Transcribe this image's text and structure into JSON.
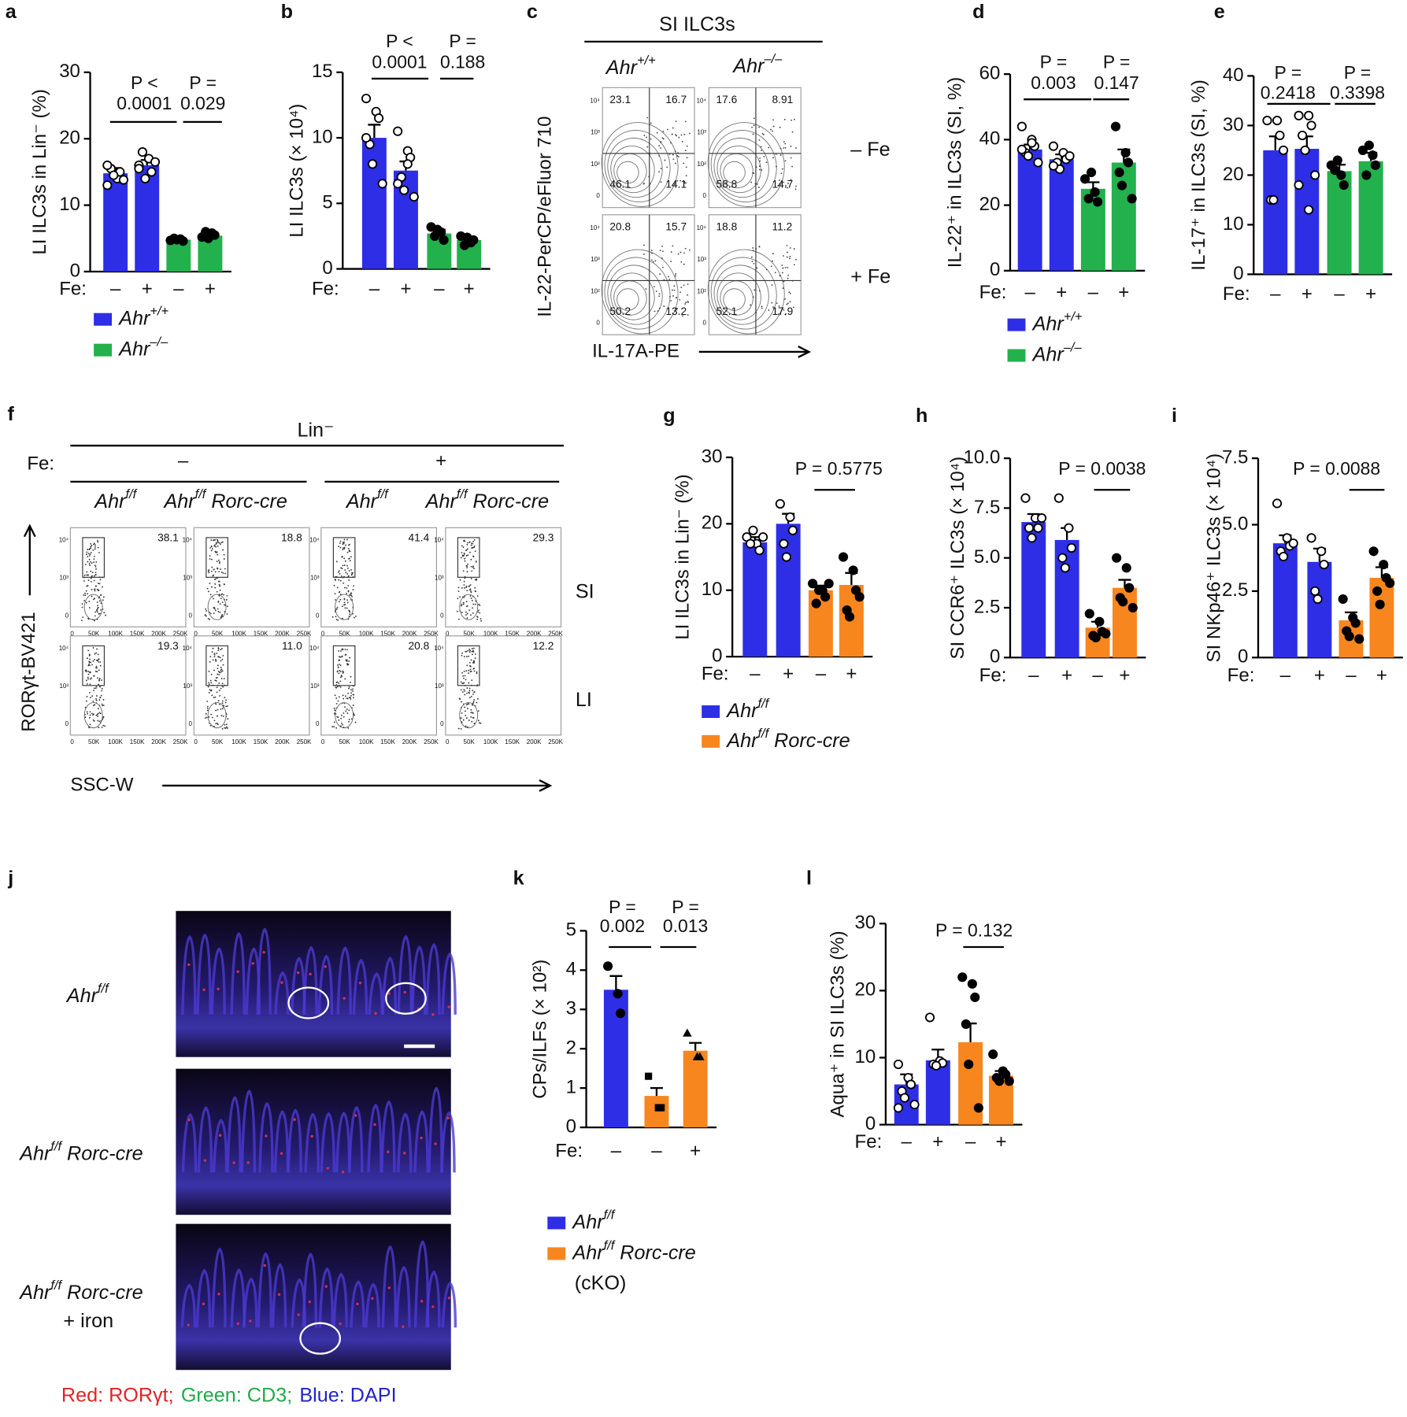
{
  "chart_data": [
    {
      "panel": "a",
      "type": "bar",
      "ylabel": "LI ILC3s in Lin⁻ (%)",
      "xlabel": "Fe:",
      "categories": [
        "–",
        "+",
        "–",
        "+"
      ],
      "values": [
        14.8,
        16.0,
        4.8,
        5.4
      ],
      "errors": [
        0.8,
        0.8,
        0.2,
        0.3
      ],
      "colors": [
        "#2e2ee6",
        "#2e2ee6",
        "#22b14c",
        "#22b14c"
      ],
      "points": [
        [
          13,
          14,
          15,
          15.5,
          14.5,
          13.8,
          16
        ],
        [
          16,
          17,
          15,
          18,
          14,
          16.5,
          15.5
        ],
        [
          4.7,
          4.9,
          4.6,
          5,
          4.8
        ],
        [
          5.2,
          5.8,
          5.5,
          6,
          5
        ]
      ],
      "point_style": [
        "open",
        "open",
        "filled",
        "filled"
      ],
      "ylim": [
        0,
        30
      ],
      "yticks": [
        0,
        10,
        20,
        30
      ],
      "annotations": [
        {
          "lines": [
            "P <",
            "0.0001"
          ]
        },
        {
          "lines": [
            "P =",
            "0.029"
          ]
        }
      ]
    },
    {
      "panel": "b",
      "type": "bar",
      "ylabel": "LI ILC3s (× 10⁴)",
      "xlabel": "Fe:",
      "categories": [
        "–",
        "+",
        "–",
        "+"
      ],
      "values": [
        10,
        7.5,
        2.7,
        2.2
      ],
      "errors": [
        1,
        0.7,
        0.3,
        0.2
      ],
      "colors": [
        "#2e2ee6",
        "#2e2ee6",
        "#22b14c",
        "#22b14c"
      ],
      "points": [
        [
          13,
          12,
          11.5,
          9.5,
          8,
          6.5,
          10
        ],
        [
          10.5,
          9,
          8.5,
          7,
          6,
          5.5,
          6.5,
          8
        ],
        [
          3.2,
          2.8,
          2.2,
          2.5,
          3
        ],
        [
          2.5,
          2,
          2.2,
          1.8,
          2.4
        ]
      ],
      "point_style": [
        "open",
        "open",
        "filled",
        "filled"
      ],
      "ylim": [
        0,
        15
      ],
      "yticks": [
        0,
        5,
        10,
        15
      ],
      "annotations": [
        {
          "lines": [
            "P <",
            "0.0001"
          ]
        },
        {
          "lines": [
            "P =",
            "0.188"
          ]
        }
      ]
    },
    {
      "panel": "d",
      "type": "bar",
      "ylabel": "IL-22⁺ in ILC3s (SI, %)",
      "xlabel": "Fe:",
      "categories": [
        "–",
        "+",
        "–",
        "+"
      ],
      "values": [
        37,
        34,
        25,
        33
      ],
      "errors": [
        1.5,
        1.5,
        2,
        4
      ],
      "colors": [
        "#2e2ee6",
        "#2e2ee6",
        "#22b14c",
        "#22b14c"
      ],
      "points": [
        [
          44,
          40,
          38,
          36,
          35,
          33,
          37,
          39
        ],
        [
          38,
          36,
          34,
          33,
          31,
          35,
          32
        ],
        [
          28,
          24,
          21,
          22,
          30
        ],
        [
          44,
          36,
          33,
          30,
          26,
          22
        ]
      ],
      "point_style": [
        "open",
        "open",
        "filled",
        "filled"
      ],
      "ylim": [
        0,
        60
      ],
      "yticks": [
        0,
        20,
        40,
        60
      ],
      "annotations": [
        {
          "lines": [
            "P =",
            "0.003"
          ]
        },
        {
          "lines": [
            "P =",
            "0.147"
          ]
        }
      ]
    },
    {
      "panel": "e",
      "type": "bar",
      "ylabel": "IL-17⁺ in ILC3s (SI, %)",
      "xlabel": "Fe:",
      "categories": [
        "–",
        "+",
        "–",
        "+"
      ],
      "values": [
        25,
        25.3,
        20.8,
        22.8
      ],
      "errors": [
        2.8,
        2.5,
        1.3,
        1.7
      ],
      "colors": [
        "#2e2ee6",
        "#2e2ee6",
        "#22b14c",
        "#22b14c"
      ],
      "points": [
        [
          31,
          31,
          28,
          15,
          15,
          25
        ],
        [
          32,
          32,
          30,
          28,
          25,
          20,
          18,
          13
        ],
        [
          22,
          20,
          18,
          21,
          23
        ],
        [
          25,
          24,
          22,
          20,
          26
        ]
      ],
      "point_style": [
        "open",
        "open",
        "filled",
        "filled"
      ],
      "ylim": [
        0,
        40
      ],
      "yticks": [
        0,
        10,
        20,
        30,
        40
      ],
      "annotations": [
        {
          "lines": [
            "P =",
            "0.2418"
          ]
        },
        {
          "lines": [
            "P =",
            "0.3398"
          ]
        }
      ]
    },
    {
      "panel": "g",
      "type": "bar",
      "ylabel": "LI ILC3s in Lin⁻ (%)",
      "xlabel": "Fe:",
      "categories": [
        "–",
        "+",
        "–",
        "+"
      ],
      "values": [
        17.2,
        20,
        10,
        10.8
      ],
      "errors": [
        0.8,
        1.5,
        0.7,
        1.8
      ],
      "colors": [
        "#2e2ee6",
        "#2e2ee6",
        "#f7861f",
        "#f7861f"
      ],
      "points": [
        [
          18,
          17,
          16,
          17,
          19,
          18
        ],
        [
          23,
          21,
          19,
          17,
          15
        ],
        [
          11,
          10,
          9,
          8,
          10,
          11
        ],
        [
          15,
          13,
          10,
          7,
          6,
          9
        ]
      ],
      "point_style": [
        "open",
        "open",
        "filled",
        "filled"
      ],
      "ylim": [
        0,
        30
      ],
      "yticks": [
        0,
        10,
        20,
        30
      ],
      "annotations": [
        {
          "lines": [
            "P = 0.5775"
          ]
        }
      ]
    },
    {
      "panel": "h",
      "type": "bar",
      "ylabel": "SI CCR6⁺ ILC3s (× 10⁴)",
      "xlabel": "Fe:",
      "categories": [
        "–",
        "+",
        "–",
        "+"
      ],
      "values": [
        6.8,
        5.9,
        1.5,
        3.5
      ],
      "errors": [
        0.4,
        0.6,
        0.3,
        0.4
      ],
      "colors": [
        "#2e2ee6",
        "#2e2ee6",
        "#f7861f",
        "#f7861f"
      ],
      "points": [
        [
          8,
          7,
          6.5,
          6.5,
          6,
          7
        ],
        [
          8,
          6.5,
          5.5,
          5,
          4.5
        ],
        [
          2.2,
          1.8,
          1.3,
          1.1,
          1,
          1.2
        ],
        [
          5,
          4.5,
          3.5,
          3,
          2.8,
          2.5
        ]
      ],
      "point_style": [
        "open",
        "open",
        "filled",
        "filled"
      ],
      "ylim": [
        0,
        10
      ],
      "yticks": [
        0,
        2.5,
        {
          "value": 5,
          "label": "5.0"
        },
        7.5,
        {
          "value": 10,
          "label": "10.0"
        }
      ],
      "annotations": [
        {
          "lines": [
            "P = 0.0038"
          ]
        }
      ]
    },
    {
      "panel": "i",
      "type": "bar",
      "ylabel": "SI NKp46⁺ ILC3s (× 10⁴)",
      "xlabel": "Fe:",
      "categories": [
        "–",
        "+",
        "–",
        "+"
      ],
      "values": [
        4.3,
        3.6,
        1.4,
        3
      ],
      "errors": [
        0.3,
        0.5,
        0.3,
        0.4
      ],
      "colors": [
        "#2e2ee6",
        "#2e2ee6",
        "#f7861f",
        "#f7861f"
      ],
      "points": [
        [
          5.8,
          4.5,
          4.2,
          4,
          3.8,
          4.3
        ],
        [
          4.5,
          4,
          3.5,
          2.5,
          2.2
        ],
        [
          2.2,
          1.5,
          1.3,
          1,
          0.8,
          0.7
        ],
        [
          4,
          3.5,
          3,
          2.5,
          2,
          2.8
        ]
      ],
      "point_style": [
        "open",
        "open",
        "filled",
        "filled"
      ],
      "ylim": [
        0,
        7.5
      ],
      "yticks": [
        0,
        2.5,
        {
          "value": 5,
          "label": "5.0"
        },
        7.5
      ],
      "annotations": [
        {
          "lines": [
            "P = 0.0088"
          ]
        }
      ]
    },
    {
      "panel": "k",
      "type": "bar",
      "ylabel": "CPs/ILFs (× 10²)",
      "xlabel": "Fe:",
      "categories": [
        "–",
        "–",
        "+"
      ],
      "values": [
        3.5,
        0.8,
        1.95
      ],
      "errors": [
        0.35,
        0.2,
        0.2
      ],
      "colors": [
        "#2e2ee6",
        "#f7861f",
        "#f7861f"
      ],
      "points": [
        [
          4.1,
          3.4,
          2.9
        ],
        [
          1.3,
          0.5,
          0.5
        ],
        [
          2.4,
          1.8,
          1.8
        ]
      ],
      "point_style": [
        "circle",
        "square",
        "triangle"
      ],
      "ylim": [
        0,
        5
      ],
      "yticks": [
        0,
        1,
        2,
        3,
        4,
        5
      ],
      "annotations": [
        {
          "lines": [
            "P =",
            "0.002"
          ]
        },
        {
          "lines": [
            "P =",
            "0.013"
          ]
        }
      ]
    },
    {
      "panel": "l",
      "type": "bar",
      "ylabel": "Aqua⁺ in SI ILC3s (%)",
      "xlabel": "Fe:",
      "categories": [
        "–",
        "+",
        "–",
        "+"
      ],
      "values": [
        6,
        9.6,
        12.3,
        7.3
      ],
      "errors": [
        1.5,
        1.6,
        2.8,
        0.7
      ],
      "colors": [
        "#2e2ee6",
        "#2e2ee6",
        "#f7861f",
        "#f7861f"
      ],
      "points": [
        [
          9,
          7,
          6,
          5,
          4,
          3,
          2.5
        ],
        [
          16,
          9.5,
          9.2,
          9,
          8.8
        ],
        [
          22,
          21,
          19,
          15,
          9,
          2.5
        ],
        [
          10.5,
          8,
          7.5,
          7,
          6.5,
          6.5
        ]
      ],
      "point_style": [
        "open",
        "open",
        "filled",
        "filled"
      ],
      "ylim": [
        0,
        30
      ],
      "yticks": [
        0,
        10,
        20,
        30
      ],
      "annotations": [
        {
          "lines": [
            "P = 0.132"
          ]
        }
      ]
    }
  ],
  "legends": [
    {
      "entries": [
        {
          "name": "Ahr",
          "sup": "+/+",
          "color": "#2e2ee6"
        },
        {
          "name": "Ahr",
          "sup": "–/–",
          "color": "#22b14c"
        }
      ]
    },
    {
      "entries": [
        {
          "name": "Ahr",
          "sup": "+/+",
          "color": "#2e2ee6"
        },
        {
          "name": "Ahr",
          "sup": "–/–",
          "color": "#22b14c"
        }
      ]
    },
    {
      "entries": [
        {
          "name": "Ahr",
          "sup": "f/f",
          "color": "#2e2ee6"
        },
        {
          "name": "Ahr",
          "sup": "f/f",
          "rest": " Rorc-cre",
          "color": "#f7861f"
        }
      ]
    },
    {
      "entries": [
        {
          "name": "Ahr",
          "sup": "f/f",
          "color": "#2e2ee6"
        },
        {
          "name": "Ahr",
          "sup": "f/f",
          "rest": " Rorc-cre",
          "color": "#f7861f"
        }
      ],
      "note": "(cKO)"
    }
  ],
  "flow_c": {
    "panel": "c",
    "title": "SI ILC3s",
    "columns": [
      {
        "name": "Ahr",
        "sup": "+/+"
      },
      {
        "name": "Ahr",
        "sup": "–/–"
      }
    ],
    "rows": [
      "– Fe",
      "+ Fe"
    ],
    "quadrants": [
      [
        [
          "23.1",
          "16.7",
          "46.1",
          "14.1"
        ],
        [
          "17.6",
          "8.91",
          "58.8",
          "14.7"
        ]
      ],
      [
        [
          "20.8",
          "15.7",
          "50.2",
          "13.2"
        ],
        [
          "18.8",
          "11.2",
          "52.1",
          "17.9"
        ]
      ]
    ],
    "yticks": [
      "10⁴",
      "10³",
      "10²",
      "0"
    ],
    "ylabel": "IL-22-PerCP/eFluor 710",
    "xlabel": "IL-17A-PE"
  },
  "flow_f": {
    "panel": "f",
    "title": "Lin⁻",
    "fe_label": "Fe:",
    "fe_groups": [
      "–",
      "+"
    ],
    "columns": [
      {
        "name": "Ahr",
        "sup": "f/f"
      },
      {
        "name": "Ahr",
        "sup": "f/f",
        "rest": " Rorc-cre"
      },
      {
        "name": "Ahr",
        "sup": "f/f"
      },
      {
        "name": "Ahr",
        "sup": "f/f",
        "rest": " Rorc-cre"
      }
    ],
    "gate_percent": [
      [
        "38.1",
        "18.8",
        "41.4",
        "29.3"
      ],
      [
        "19.3",
        "11.0",
        "20.8",
        "12.2"
      ]
    ],
    "rows": [
      "SI",
      "LI"
    ],
    "ylabel": "RORγt-BV421",
    "xlabel": "SSC-W",
    "yticks": [
      "10⁴",
      "10³",
      "0"
    ],
    "xticks": [
      "0",
      "50K",
      "100K",
      "150K",
      "200K",
      "250K"
    ]
  },
  "image_j": {
    "panel": "j",
    "labels": [
      {
        "name": "Ahr",
        "sup": "f/f"
      },
      {
        "name": "Ahr",
        "sup": "f/f",
        "rest": " Rorc-cre"
      },
      {
        "name": "Ahr",
        "sup": "f/f",
        "rest": " Rorc-cre"
      }
    ],
    "label_note": "+ iron",
    "caption": [
      {
        "text": "Red: RORγt;",
        "color": "#e02424"
      },
      {
        "text": "Green: CD3;",
        "color": "#1faa4a"
      },
      {
        "text": "Blue: DAPI",
        "color": "#2222cc"
      }
    ]
  }
}
